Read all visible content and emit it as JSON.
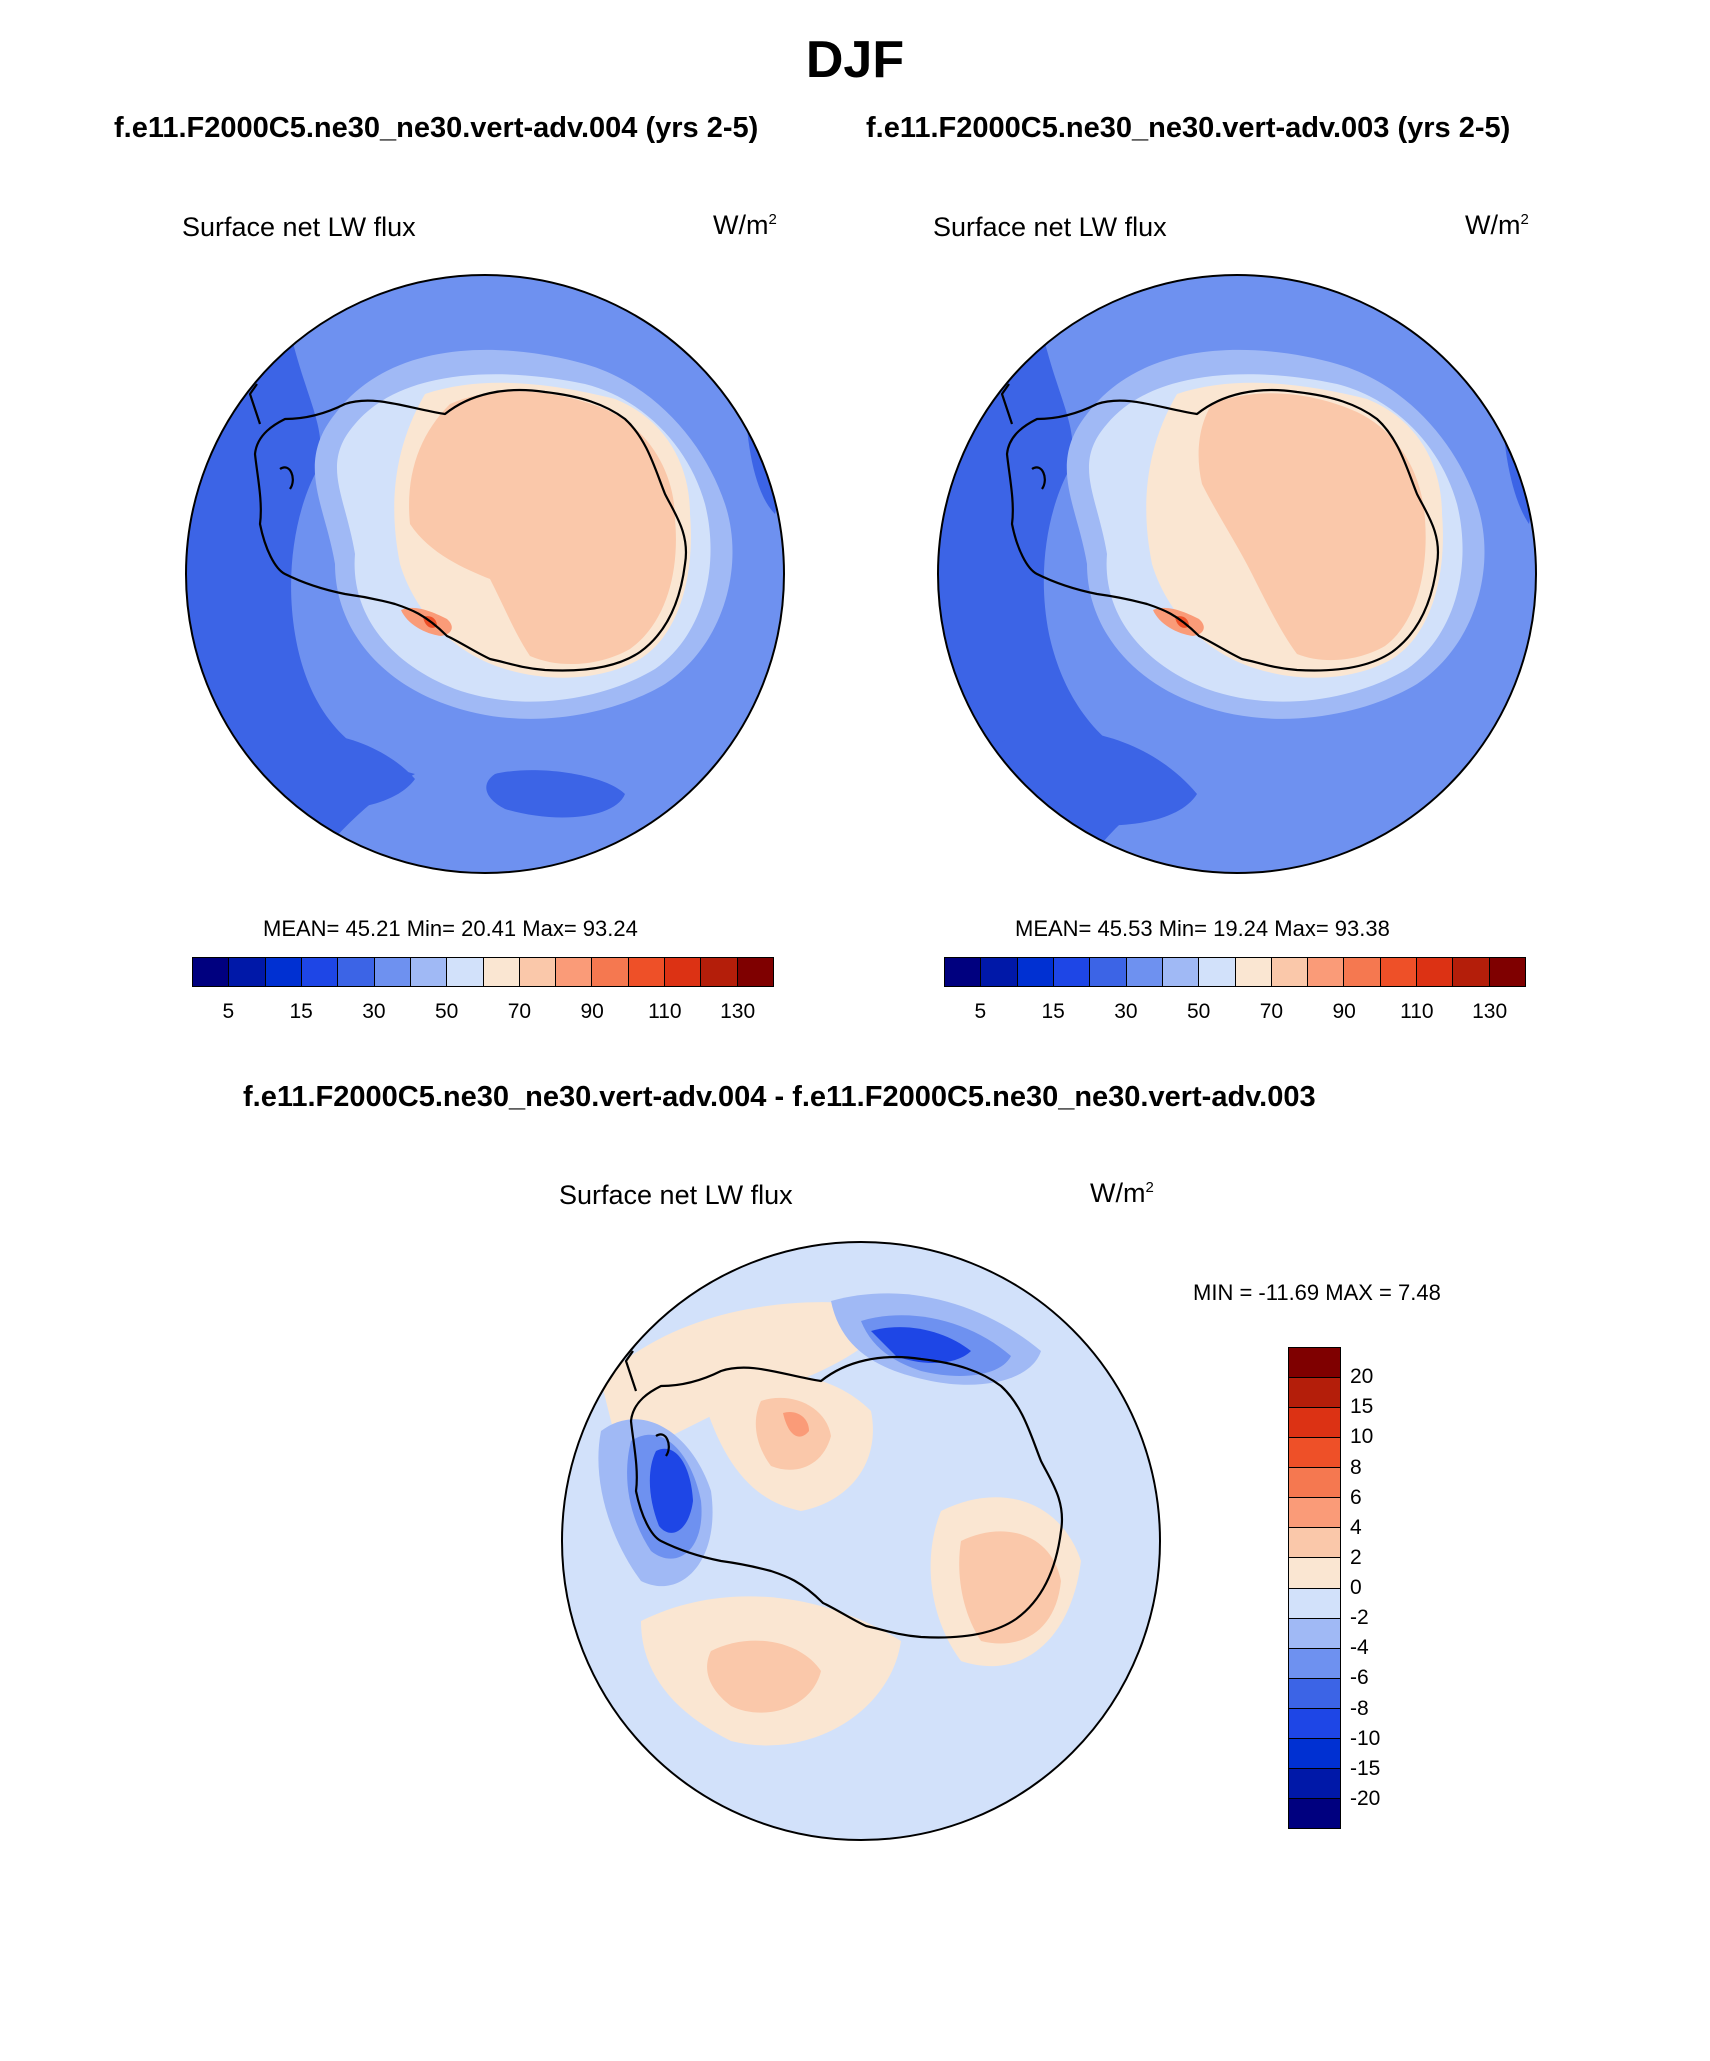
{
  "title": "DJF",
  "top_subtitles": {
    "left": "f.e11.F2000C5.ne30_ne30.vert-adv.004 (yrs 2-5)",
    "right": "f.e11.F2000C5.ne30_ne30.vert-adv.003 (yrs 2-5)"
  },
  "panels": [
    {
      "variable": "Surface net LW flux",
      "units_base": "W/m",
      "units_exp": "2",
      "stats": "MEAN=  45.21  Min=  20.41  Max=  93.24"
    },
    {
      "variable": "Surface net LW flux",
      "units_base": "W/m",
      "units_exp": "2",
      "stats": "MEAN=  45.53  Min=  19.24  Max=  93.38"
    }
  ],
  "diff_panel": {
    "subtitle": "f.e11.F2000C5.ne30_ne30.vert-adv.004 - f.e11.F2000C5.ne30_ne30.vert-adv.003",
    "variable": "Surface net LW flux",
    "units_base": "W/m",
    "units_exp": "2",
    "stats": "MIN = -11.69 MAX =   7.48"
  },
  "colorbar_main": {
    "colors": [
      "#00007f",
      "#0018a8",
      "#0030d2",
      "#1e46e6",
      "#3c64e6",
      "#6e91f0",
      "#a0b9f5",
      "#d2e1fa",
      "#fae6d2",
      "#fac8aa",
      "#fa9b78",
      "#f57850",
      "#ee5028",
      "#dc3214",
      "#b41e0a",
      "#7f0000"
    ],
    "tick_labels": [
      "5",
      "15",
      "30",
      "50",
      "70",
      "90",
      "110",
      "130"
    ]
  },
  "colorbar_diff": {
    "colors": [
      "#7f0000",
      "#b41e0a",
      "#dc3214",
      "#ee5028",
      "#f57850",
      "#fa9b78",
      "#fac8aa",
      "#fae6d2",
      "#d2e1fa",
      "#a0b9f5",
      "#6e91f0",
      "#3c64e6",
      "#1e46e6",
      "#0030d2",
      "#0018a8",
      "#00007f"
    ],
    "tick_labels": [
      "20",
      "15",
      "10",
      "8",
      "6",
      "4",
      "2",
      "0",
      "-2",
      "-4",
      "-6",
      "-8",
      "-10",
      "-15",
      "-20"
    ]
  },
  "map_colors": {
    "ocean_deep": "#3c64e6",
    "ocean_mid": "#6e91f0",
    "ocean_light": "#a0b9f5",
    "coast_pale": "#d2e1fa",
    "ice_pale": "#fae6d2",
    "ice_main": "#fac8aa",
    "ice_warm": "#fa9b78",
    "hot_spot": "#ee5028",
    "diff_neutral": "#d2e1fa",
    "diff_pos_light": "#fae6d2",
    "diff_pos": "#fac8aa",
    "diff_pos_strong": "#fa9b78",
    "diff_neg_light": "#a0b9f5",
    "diff_neg": "#6e91f0",
    "diff_neg_strong": "#1e46e6",
    "coastline": "#000000"
  }
}
